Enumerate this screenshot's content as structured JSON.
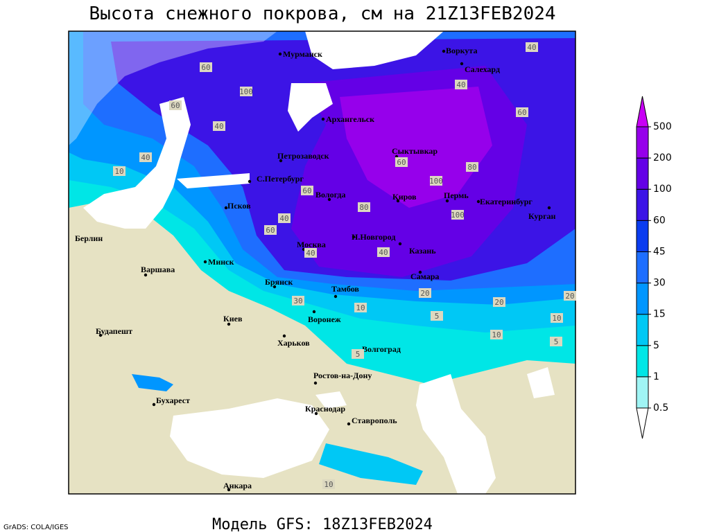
{
  "title": "Высота снежного покрова, см на 21Z13FEB2024",
  "footer": "Модель GFS: 18Z13FEB2024",
  "credit": "GrADS: COLA/IGES",
  "legend": {
    "levels": [
      0.5,
      1,
      5,
      15,
      30,
      45,
      60,
      100,
      200,
      500
    ],
    "colors": [
      "#ffffff",
      "#a0f5f5",
      "#00e6e6",
      "#00c8f5",
      "#0096ff",
      "#1e6eff",
      "#0a3cf0",
      "#3c14e6",
      "#6400e6",
      "#9600eb",
      "#c800f5"
    ]
  },
  "cities": [
    "Мурманск",
    "Воркута",
    "Салехард",
    "Архангельск",
    "Сыктывкар",
    "Петрозаводск",
    "С.Петербург",
    "Вологда",
    "Киров",
    "Пермь",
    "Екатеринбург",
    "Курган",
    "Псков",
    "Берлин",
    "Минск",
    "Варшава",
    "Москва",
    "Н.Новгород",
    "Казань",
    "Брянск",
    "Тамбов",
    "Самара",
    "Воронеж",
    "Киев",
    "Харьков",
    "Будапешт",
    "Волгоград",
    "Ростов-на-Дону",
    "Бухарест",
    "Краснодар",
    "Ставрополь",
    "Анкара"
  ],
  "contour_labels": [
    40,
    60,
    100,
    10,
    40,
    60,
    80,
    100,
    60,
    40,
    60,
    40,
    80,
    60,
    40,
    40,
    30,
    20,
    20,
    10,
    5,
    10,
    5,
    10,
    5,
    10,
    20,
    40,
    60,
    100
  ]
}
